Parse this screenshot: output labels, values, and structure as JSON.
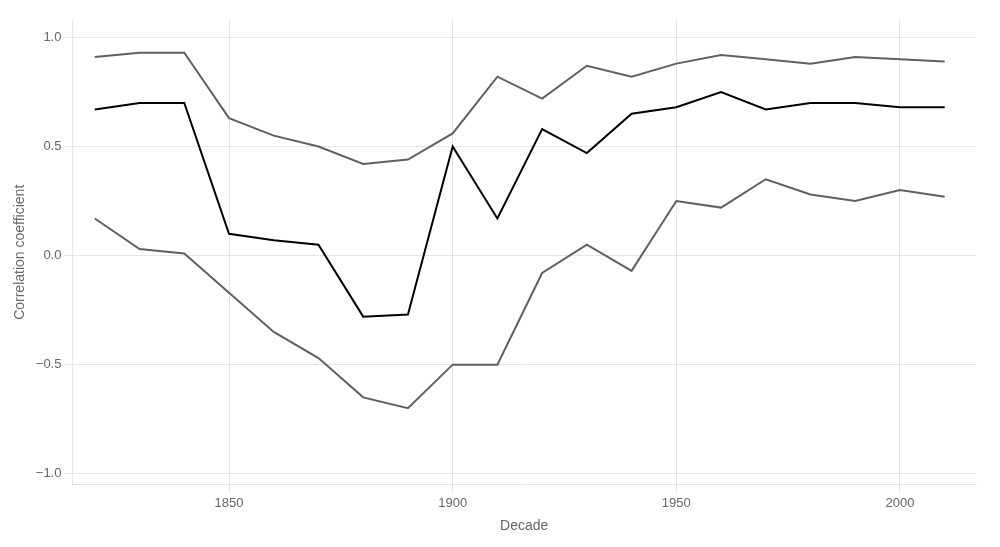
{
  "chart_data": {
    "type": "line",
    "x": [
      1820,
      1830,
      1840,
      1850,
      1860,
      1870,
      1880,
      1890,
      1900,
      1910,
      1920,
      1930,
      1940,
      1950,
      1960,
      1970,
      1980,
      1990,
      2000,
      2010
    ],
    "series": [
      {
        "color": "#606060",
        "values": [
          0.91,
          0.93,
          0.93,
          0.63,
          0.55,
          0.5,
          0.42,
          0.44,
          0.56,
          0.82,
          0.72,
          0.87,
          0.82,
          0.88,
          0.92,
          0.9,
          0.88,
          0.91,
          0.9,
          0.89
        ]
      },
      {
        "color": "#000000",
        "values": [
          0.67,
          0.7,
          0.7,
          0.1,
          0.07,
          0.05,
          -0.28,
          -0.27,
          0.5,
          0.17,
          0.58,
          0.47,
          0.65,
          0.68,
          0.75,
          0.67,
          0.7,
          0.7,
          0.68,
          0.68
        ]
      },
      {
        "color": "#606060",
        "values": [
          0.17,
          0.03,
          0.01,
          -0.17,
          -0.35,
          -0.47,
          -0.65,
          -0.7,
          -0.5,
          -0.5,
          -0.08,
          0.05,
          -0.07,
          0.25,
          0.22,
          0.35,
          0.28,
          0.25,
          0.3,
          0.27
        ]
      }
    ],
    "xlabel": "Decade",
    "ylabel": "Correlation coefficient",
    "xlim": [
      1815,
      2017
    ],
    "ylim": [
      -1.05,
      1.08
    ],
    "xticks": [
      1850,
      1900,
      1950,
      2000
    ],
    "yticks": [
      {
        "value": -1.0,
        "label": "−1.0"
      },
      {
        "value": -0.5,
        "label": "−0.5"
      },
      {
        "value": 0.0,
        "label": "0.0"
      },
      {
        "value": 0.5,
        "label": "0.5"
      },
      {
        "value": 1.0,
        "label": "1.0"
      }
    ],
    "grid": true
  }
}
